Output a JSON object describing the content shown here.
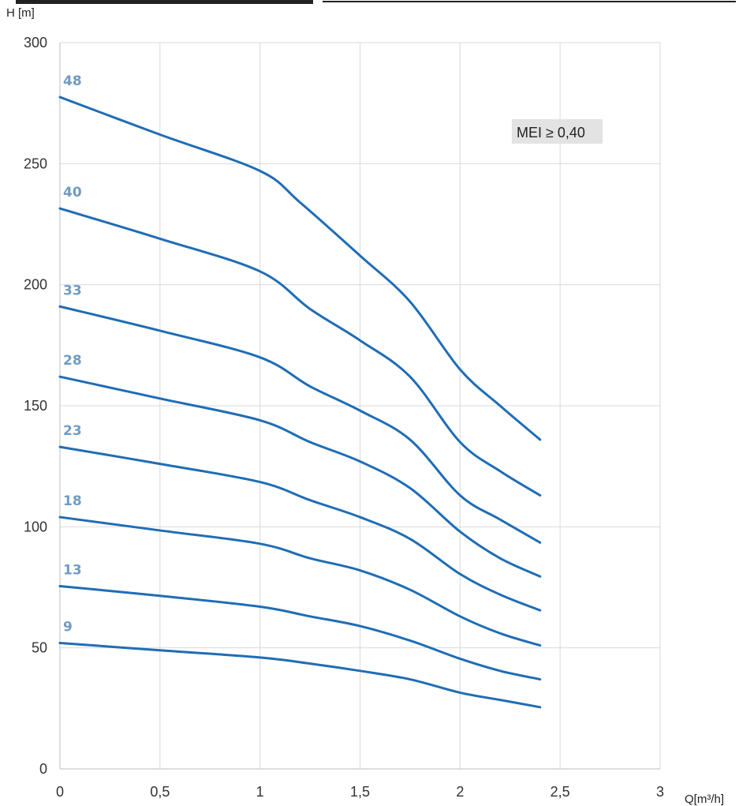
{
  "chart_data": {
    "type": "line",
    "title": "",
    "xlabel": "Q[m³/h]",
    "ylabel": "H  [m]",
    "xlim": [
      0,
      3
    ],
    "ylim": [
      0,
      300
    ],
    "x_ticks": [
      0,
      0.5,
      1,
      1.5,
      2,
      2.5,
      3
    ],
    "x_tick_labels": [
      "0",
      "0,5",
      "1",
      "1,5",
      "2",
      "2,5",
      "3"
    ],
    "y_ticks": [
      0,
      50,
      100,
      150,
      200,
      250,
      300
    ],
    "y_tick_labels": [
      "0",
      "50",
      "100",
      "150",
      "200",
      "250",
      "300"
    ],
    "grid": true,
    "legend": "none",
    "line_color": "#1f6db5",
    "label_color": "#6f9cc4",
    "annotation": {
      "text": "MEI ≥ 0,40",
      "x": 2.6,
      "y": 263,
      "background": "#e3e3e3"
    },
    "series": [
      {
        "name": "48",
        "points": [
          [
            0,
            277.5
          ],
          [
            0.5,
            262
          ],
          [
            1,
            247
          ],
          [
            1.2,
            234
          ],
          [
            1.5,
            212
          ],
          [
            1.75,
            193
          ],
          [
            2,
            165
          ],
          [
            2.2,
            150
          ],
          [
            2.4,
            136
          ]
        ]
      },
      {
        "name": "40",
        "points": [
          [
            0,
            231.5
          ],
          [
            0.5,
            219
          ],
          [
            1,
            205.5
          ],
          [
            1.25,
            190
          ],
          [
            1.5,
            177
          ],
          [
            1.75,
            162
          ],
          [
            2,
            135
          ],
          [
            2.2,
            123
          ],
          [
            2.4,
            113
          ]
        ]
      },
      {
        "name": "33",
        "points": [
          [
            0,
            191
          ],
          [
            0.5,
            181
          ],
          [
            1,
            170
          ],
          [
            1.25,
            158
          ],
          [
            1.5,
            148
          ],
          [
            1.75,
            136
          ],
          [
            2,
            113
          ],
          [
            2.2,
            103
          ],
          [
            2.4,
            93.5
          ]
        ]
      },
      {
        "name": "28",
        "points": [
          [
            0,
            162
          ],
          [
            0.5,
            153
          ],
          [
            1,
            144
          ],
          [
            1.25,
            135
          ],
          [
            1.5,
            127
          ],
          [
            1.75,
            116
          ],
          [
            2,
            98
          ],
          [
            2.2,
            87
          ],
          [
            2.4,
            79.5
          ]
        ]
      },
      {
        "name": "23",
        "points": [
          [
            0,
            133
          ],
          [
            0.5,
            126
          ],
          [
            1,
            118.5
          ],
          [
            1.25,
            111
          ],
          [
            1.5,
            104
          ],
          [
            1.75,
            95
          ],
          [
            2,
            80.5
          ],
          [
            2.2,
            72
          ],
          [
            2.4,
            65.5
          ]
        ]
      },
      {
        "name": "18",
        "points": [
          [
            0,
            104
          ],
          [
            0.5,
            98.5
          ],
          [
            1,
            93
          ],
          [
            1.25,
            87
          ],
          [
            1.5,
            82
          ],
          [
            1.75,
            74
          ],
          [
            2,
            63
          ],
          [
            2.2,
            56
          ],
          [
            2.4,
            51
          ]
        ]
      },
      {
        "name": "13",
        "points": [
          [
            0,
            75.5
          ],
          [
            0.5,
            71.5
          ],
          [
            1,
            67
          ],
          [
            1.25,
            63
          ],
          [
            1.5,
            59
          ],
          [
            1.75,
            53
          ],
          [
            2,
            45.5
          ],
          [
            2.2,
            40.5
          ],
          [
            2.4,
            37
          ]
        ]
      },
      {
        "name": "9",
        "points": [
          [
            0,
            52
          ],
          [
            0.5,
            49
          ],
          [
            1,
            46
          ],
          [
            1.25,
            43.5
          ],
          [
            1.5,
            40.5
          ],
          [
            1.75,
            37
          ],
          [
            2,
            31.5
          ],
          [
            2.2,
            28.5
          ],
          [
            2.4,
            25.5
          ]
        ]
      }
    ]
  }
}
